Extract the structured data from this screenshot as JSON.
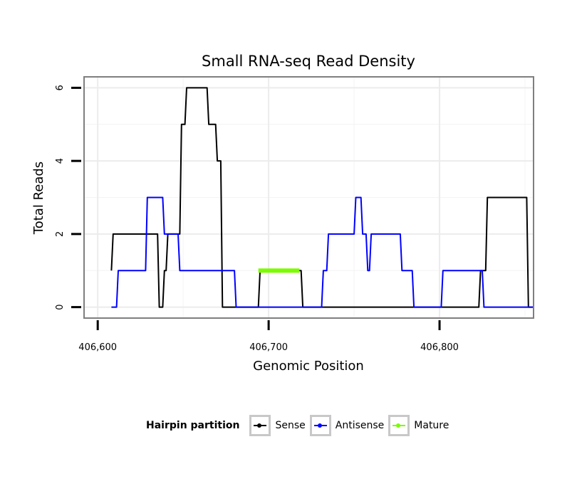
{
  "chart_data": {
    "type": "line",
    "title": "Small RNA-seq Read Density",
    "xlabel": "Genomic Position",
    "ylabel": "Total Reads",
    "xlim": [
      406592,
      406855
    ],
    "ylim": [
      -0.3,
      6.3
    ],
    "xticks": [
      406600,
      406700,
      406800
    ],
    "xtick_labels": [
      "406,600",
      "406,700",
      "406,800"
    ],
    "yticks": [
      0,
      2,
      4,
      6
    ],
    "ytick_labels": [
      "0",
      "2",
      "4",
      "6"
    ],
    "grid": true,
    "legend_position": "bottom",
    "legend_title": "Hairpin partition",
    "series": [
      {
        "name": "Sense",
        "color": "#000000",
        "width": 2,
        "x": [
          406608,
          406609,
          406635,
          406636,
          406638,
          406639,
          406640,
          406641,
          406642,
          406648,
          406649,
          406650,
          406651,
          406652,
          406653,
          406656,
          406664,
          406665,
          406666,
          406669,
          406670,
          406671,
          406672,
          406673,
          406674,
          406674.5,
          406687,
          406694,
          406695,
          406718,
          406719,
          406720,
          406721,
          406732,
          406785,
          406823,
          406824,
          406826,
          406827,
          406828,
          406851,
          406852,
          406855
        ],
        "values": [
          1,
          2,
          2,
          0,
          0,
          1,
          1,
          2,
          2,
          2,
          5,
          5,
          5,
          6,
          6,
          6,
          6,
          5,
          5,
          5,
          4,
          4,
          4,
          0,
          0,
          0,
          0,
          0,
          1,
          1,
          1,
          0,
          0,
          0,
          0,
          0,
          1,
          1,
          1,
          3,
          3,
          0,
          0
        ]
      },
      {
        "name": "Antisense",
        "color": "#0000ff",
        "width": 2,
        "x": [
          406608,
          406611,
          406612,
          406628,
          406629,
          406638,
          406639,
          406647,
          406648,
          406649,
          406665,
          406666,
          406680,
          406681,
          406701,
          406720,
          406731,
          406732,
          406734,
          406735,
          406750,
          406751,
          406754,
          406755,
          406757,
          406758,
          406759,
          406760,
          406761,
          406777,
          406778,
          406784,
          406785,
          406801,
          406802,
          406822,
          406823,
          406825,
          406826,
          406852,
          406855
        ],
        "values": [
          0,
          0,
          1,
          1,
          3,
          3,
          2,
          2,
          1,
          1,
          1,
          1,
          1,
          0,
          0,
          0,
          0,
          1,
          1,
          2,
          2,
          3,
          3,
          2,
          2,
          1,
          1,
          2,
          2,
          2,
          1,
          1,
          0,
          0,
          1,
          1,
          1,
          1,
          0,
          0,
          0
        ]
      },
      {
        "name": "Mature",
        "color": "#7cfc00",
        "width": 6,
        "x": [
          406694,
          406718
        ],
        "values": [
          1,
          1
        ]
      }
    ]
  }
}
